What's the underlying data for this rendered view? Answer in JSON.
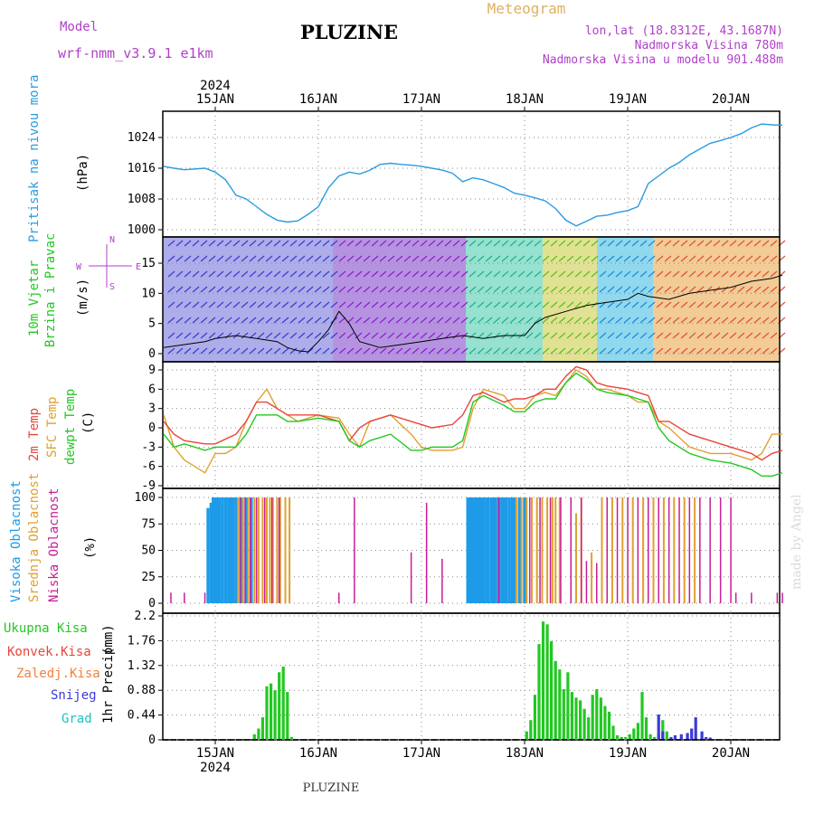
{
  "header": {
    "model_label": "Model",
    "model_name": "wrf-nmm_v3.9.1 e1km",
    "title": "PLUZINE",
    "subtitle": "Meteogram",
    "lonlat": "lon,lat (18.8312E, 43.1687N)",
    "elevation": "Nadmorska Visina 780m",
    "model_elevation": "Nadmorska Visina u modelu 901.488m",
    "footer_title": "PLUZINE",
    "watermark": "made by Angel"
  },
  "colors": {
    "pressure": "#2b9be0",
    "t2m": "#e8453c",
    "sfc": "#e0a030",
    "dew": "#22c822",
    "purple": "#b040c8",
    "frame": "#000000",
    "grid": "#888888",
    "high_cloud": "#1e9be8",
    "mid_cloud": "#e0a030",
    "low_cloud": "#c81e96",
    "rain": "#22c822",
    "snow": "#3a3ad8",
    "grad": "#20c0c0"
  },
  "chart_data": {
    "x_ticks": [
      "15JAN",
      "16JAN",
      "17JAN",
      "18JAN",
      "19JAN",
      "20JAN"
    ],
    "year_label": "2024",
    "panels": [
      {
        "type": "line",
        "label": "Pritisak na nivou mora",
        "unit": "(hPa)",
        "ylim": [
          1000,
          1028
        ],
        "yticks": [
          1000,
          1008,
          1016,
          1024
        ],
        "series": [
          {
            "x": [
              -0.5,
              -0.4,
              -0.3,
              -0.1,
              0.0,
              0.1,
              0.2,
              0.3,
              0.4,
              0.5,
              0.6,
              0.7,
              0.8,
              0.9,
              1.0,
              1.1,
              1.2,
              1.3,
              1.4,
              1.5,
              1.6,
              1.7,
              1.8,
              1.9,
              2.0,
              2.1,
              2.2,
              2.3,
              2.4,
              2.5,
              2.6,
              2.7,
              2.8,
              2.9,
              3.0,
              3.1,
              3.2,
              3.3,
              3.4,
              3.5,
              3.6,
              3.7,
              3.8,
              3.9,
              4.0,
              4.1,
              4.2,
              4.3,
              4.4,
              4.5,
              4.6,
              4.7,
              4.8,
              4.9,
              5.0,
              5.1,
              5.2,
              5.3,
              5.4,
              5.5
            ],
            "y": [
              1016.5,
              1016,
              1015.6,
              1016,
              1015,
              1013,
              1009,
              1008,
              1006,
              1004,
              1002.5,
              1002,
              1002.3,
              1004,
              1006,
              1011,
              1014,
              1015,
              1014.5,
              1015.5,
              1017,
              1017.3,
              1017,
              1016.8,
              1016.5,
              1016,
              1015.5,
              1014.7,
              1012.5,
              1013.5,
              1013,
              1012,
              1011,
              1009.5,
              1009,
              1008.3,
              1007.5,
              1005.5,
              1002.5,
              1001,
              1002.2,
              1003.5,
              1003.8,
              1004.5,
              1005,
              1006,
              1012,
              1014,
              1016,
              1017.5,
              1019.5,
              1021,
              1022.5,
              1023.2,
              1024,
              1025,
              1026.5,
              1027.5,
              1027.3,
              1027.2
            ],
            "name": ""
          }
        ]
      },
      {
        "type": "line",
        "label": "10m Vjetar Brzina i Pravac",
        "unit": "(m/s)",
        "ylim": [
          -1,
          19
        ],
        "yticks": [
          0,
          5,
          10,
          15
        ],
        "compass": [
          "W",
          "S",
          "N",
          "E"
        ],
        "series": [
          {
            "x": [
              -0.5,
              -0.3,
              -0.1,
              0.0,
              0.2,
              0.4,
              0.6,
              0.7,
              0.8,
              0.9,
              1.0,
              1.1,
              1.2,
              1.3,
              1.4,
              1.6,
              1.8,
              2.0,
              2.2,
              2.4,
              2.6,
              2.8,
              3.0,
              3.1,
              3.2,
              3.4,
              3.6,
              3.8,
              4.0,
              4.1,
              4.2,
              4.4,
              4.6,
              4.8,
              5.0,
              5.2,
              5.4,
              5.5
            ],
            "y": [
              1,
              1.5,
              2,
              2.5,
              3,
              2.5,
              2,
              1,
              0.5,
              0.3,
              2,
              4,
              7,
              5,
              2,
              1,
              1.5,
              2,
              2.5,
              3,
              2.5,
              3,
              3,
              5,
              6,
              7,
              8,
              8.5,
              9,
              10,
              9.5,
              9,
              10,
              10.5,
              11,
              12,
              12.5,
              13
            ],
            "name": ""
          }
        ]
      },
      {
        "type": "line",
        "label": "2m Temp / SFC Temp / dewpt Temp",
        "unit": "(C)",
        "ylim": [
          -9,
          10
        ],
        "yticks": [
          -9,
          -6,
          -3,
          0,
          3,
          6,
          9
        ],
        "series": [
          {
            "name": "2m Temp",
            "x": [
              -0.5,
              -0.4,
              -0.3,
              -0.1,
              0.0,
              0.2,
              0.3,
              0.4,
              0.5,
              0.6,
              0.7,
              0.8,
              1.0,
              1.2,
              1.3,
              1.4,
              1.5,
              1.7,
              1.9,
              2.0,
              2.1,
              2.3,
              2.4,
              2.5,
              2.6,
              2.8,
              2.9,
              3.0,
              3.1,
              3.2,
              3.3,
              3.4,
              3.5,
              3.6,
              3.7,
              3.8,
              4.0,
              4.1,
              4.2,
              4.3,
              4.4,
              4.6,
              4.8,
              5.0,
              5.2,
              5.3,
              5.4,
              5.5
            ],
            "y": [
              1,
              -1,
              -2,
              -2.5,
              -2.5,
              -1,
              1,
              4,
              4,
              3,
              2,
              2,
              2,
              1,
              -2,
              0,
              1,
              2,
              1,
              0.5,
              0,
              0.5,
              2,
              5,
              5.5,
              4,
              4.5,
              4.5,
              5,
              6,
              6,
              8,
              9.5,
              9,
              7,
              6.5,
              6,
              5.5,
              5,
              1,
              1,
              -1,
              -2,
              -3,
              -4,
              -5,
              -4,
              -3.5
            ]
          },
          {
            "name": "SFC Temp",
            "x": [
              -0.5,
              -0.4,
              -0.3,
              -0.2,
              -0.1,
              0.0,
              0.1,
              0.2,
              0.3,
              0.4,
              0.5,
              0.6,
              0.7,
              0.8,
              1.0,
              1.2,
              1.3,
              1.4,
              1.5,
              1.7,
              1.9,
              2.0,
              2.1,
              2.3,
              2.4,
              2.5,
              2.6,
              2.8,
              2.9,
              3.0,
              3.1,
              3.2,
              3.3,
              3.4,
              3.5,
              3.6,
              3.7,
              3.8,
              4.0,
              4.1,
              4.2,
              4.3,
              4.4,
              4.6,
              4.8,
              5.0,
              5.2,
              5.3,
              5.4,
              5.5
            ],
            "y": [
              2,
              -3,
              -5,
              -6,
              -7,
              -4,
              -4,
              -3,
              1,
              4,
              6,
              3,
              2,
              1,
              2,
              1.5,
              -1,
              -3,
              1,
              2,
              -1,
              -3,
              -3.5,
              -3.5,
              -3,
              3,
              6,
              5,
              3,
              3,
              5,
              5.5,
              5,
              7,
              9,
              8,
              6,
              6,
              5,
              4,
              4,
              1,
              0,
              -3,
              -4,
              -4,
              -5,
              -4,
              -1,
              -1
            ]
          },
          {
            "name": "dewpt Temp",
            "x": [
              -0.5,
              -0.4,
              -0.3,
              -0.2,
              -0.1,
              0.0,
              0.2,
              0.3,
              0.4,
              0.5,
              0.6,
              0.7,
              0.8,
              1.0,
              1.2,
              1.3,
              1.4,
              1.5,
              1.7,
              1.9,
              2.0,
              2.1,
              2.3,
              2.4,
              2.5,
              2.6,
              2.8,
              2.9,
              3.0,
              3.1,
              3.2,
              3.3,
              3.4,
              3.5,
              3.6,
              3.7,
              3.8,
              4.0,
              4.1,
              4.2,
              4.3,
              4.4,
              4.6,
              4.8,
              5.0,
              5.2,
              5.3,
              5.4,
              5.5
            ],
            "y": [
              -1,
              -3,
              -2.5,
              -3,
              -3.5,
              -3,
              -3,
              -1,
              2,
              2,
              2,
              1,
              1,
              1.5,
              1,
              -2,
              -3,
              -2,
              -1,
              -3.5,
              -3.5,
              -3,
              -3,
              -2,
              4,
              5,
              3.5,
              2.5,
              2.5,
              4,
              4.5,
              4.5,
              7,
              8.5,
              7.5,
              6,
              5.5,
              5,
              4.5,
              4,
              0,
              -2,
              -4,
              -5,
              -5.5,
              -6.5,
              -7.5,
              -7.5,
              -7
            ]
          }
        ]
      },
      {
        "type": "bar",
        "label": "Visoka Oblacnost / Srednja Oblacnost / Niska Oblacnost",
        "unit": "(%)",
        "ylim": [
          0,
          100
        ],
        "yticks": [
          0,
          25,
          50,
          75,
          100
        ],
        "series": [
          {
            "name": "Visoka Oblacnost",
            "x": [
              -0.07,
              -0.04,
              -0.02,
              0.0,
              0.02,
              0.04,
              0.07,
              0.1,
              0.13,
              0.15,
              0.17,
              0.2,
              0.25,
              0.3,
              0.35,
              2.45,
              2.48,
              2.5,
              2.52,
              2.55,
              2.58,
              2.6,
              2.63,
              2.65,
              2.68,
              2.7,
              2.72,
              2.75,
              2.78,
              2.8,
              2.82,
              2.85,
              2.88,
              2.9,
              2.95,
              3.0
            ],
            "values": [
              90,
              95,
              100,
              100,
              100,
              100,
              100,
              100,
              100,
              100,
              100,
              100,
              100,
              100,
              100,
              100,
              100,
              100,
              100,
              100,
              100,
              100,
              100,
              100,
              100,
              100,
              100,
              100,
              100,
              100,
              100,
              100,
              100,
              100,
              100,
              100
            ]
          },
          {
            "name": "Srednja Oblacnost",
            "x": [
              0.22,
              0.27,
              0.32,
              0.38,
              0.42,
              0.46,
              0.5,
              0.53,
              0.56,
              0.6,
              0.63,
              0.68,
              0.72,
              2.92,
              2.97,
              3.02,
              3.07,
              3.12,
              3.17,
              3.22,
              3.27,
              3.3,
              3.34,
              3.5,
              3.55,
              3.65,
              3.75,
              3.85,
              3.95,
              4.05,
              4.15,
              4.25,
              4.35,
              4.45,
              4.55,
              4.65
            ],
            "values": [
              100,
              100,
              100,
              100,
              100,
              100,
              100,
              100,
              100,
              100,
              100,
              100,
              100,
              100,
              100,
              100,
              100,
              100,
              100,
              100,
              100,
              100,
              100,
              85,
              100,
              48,
              100,
              100,
              100,
              100,
              100,
              100,
              100,
              100,
              100,
              100
            ]
          },
          {
            "name": "Niska Oblacnost",
            "x": [
              -0.43,
              -0.3,
              -0.1,
              0.24,
              0.29,
              0.34,
              0.4,
              0.48,
              0.55,
              0.62,
              1.2,
              1.35,
              1.9,
              2.05,
              2.2,
              2.75,
              3.05,
              3.15,
              3.25,
              3.35,
              3.45,
              3.55,
              3.6,
              3.7,
              3.8,
              3.9,
              4.0,
              4.1,
              4.2,
              4.3,
              4.4,
              4.5,
              4.6,
              4.7,
              4.8,
              4.9,
              5.0,
              5.05,
              5.2,
              5.45,
              5.5
            ],
            "values": [
              10,
              10,
              10,
              100,
              100,
              100,
              100,
              100,
              100,
              100,
              10,
              100,
              48,
              95,
              42,
              100,
              100,
              100,
              100,
              100,
              100,
              100,
              40,
              38,
              100,
              100,
              100,
              100,
              100,
              100,
              100,
              100,
              100,
              100,
              100,
              100,
              100,
              10,
              10,
              10,
              10
            ]
          }
        ]
      },
      {
        "type": "bar",
        "label": "1hr Precip",
        "unit": "(mm)",
        "ylim": [
          0,
          2.2
        ],
        "yticks": [
          0,
          0.44,
          0.88,
          1.32,
          1.76,
          2.2
        ],
        "legend": [
          "Ukupna Kisa",
          "Konvek.Kisa",
          "Zaledj.Kisa",
          "Snijeg",
          "Grad"
        ],
        "series": [
          {
            "name": "Ukupna Kisa",
            "x": [
              0.38,
              0.42,
              0.46,
              0.5,
              0.54,
              0.58,
              0.62,
              0.66,
              0.7,
              0.74,
              3.02,
              3.06,
              3.1,
              3.14,
              3.18,
              3.22,
              3.26,
              3.3,
              3.34,
              3.38,
              3.42,
              3.46,
              3.5,
              3.54,
              3.58,
              3.62,
              3.66,
              3.7,
              3.74,
              3.78,
              3.82,
              3.86,
              3.9,
              3.94,
              3.98,
              4.02,
              4.06,
              4.1,
              4.14,
              4.18,
              4.22,
              4.26,
              4.3,
              4.34,
              4.38
            ],
            "values": [
              0.1,
              0.2,
              0.4,
              0.95,
              1.0,
              0.88,
              1.2,
              1.3,
              0.85,
              0.05,
              0.15,
              0.35,
              0.8,
              1.7,
              2.1,
              2.05,
              1.75,
              1.4,
              1.25,
              0.9,
              1.2,
              0.85,
              0.75,
              0.7,
              0.55,
              0.4,
              0.8,
              0.9,
              0.75,
              0.6,
              0.5,
              0.25,
              0.08,
              0.05,
              0.05,
              0.1,
              0.2,
              0.3,
              0.85,
              0.4,
              0.1,
              0.05,
              0.1,
              0.35,
              0.15
            ]
          },
          {
            "name": "Snijeg",
            "x": [
              4.3,
              4.34,
              4.42,
              4.46,
              4.52,
              4.58,
              4.62,
              4.66,
              4.72,
              4.76,
              4.8
            ],
            "values": [
              0.45,
              0.15,
              0.05,
              0.08,
              0.1,
              0.12,
              0.2,
              0.4,
              0.15,
              0.05,
              0.04
            ]
          }
        ]
      }
    ]
  }
}
